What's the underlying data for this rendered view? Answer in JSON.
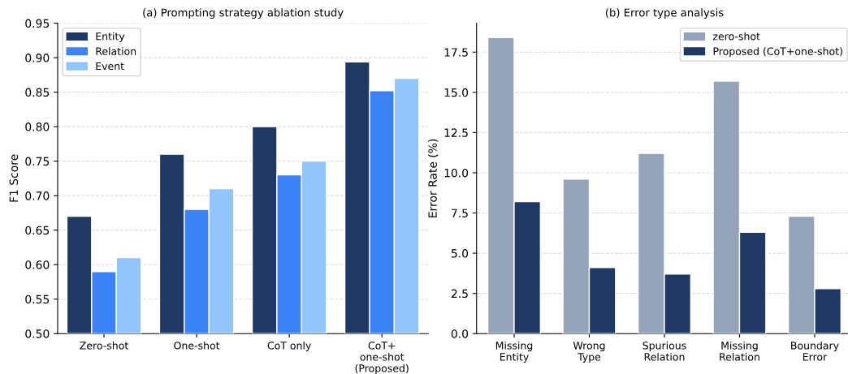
{
  "chart_data": [
    {
      "type": "bar",
      "title": "(a) Prompting strategy ablation study",
      "ylabel": "F1 Score",
      "categories": [
        "Zero-shot",
        "One-shot",
        "CoT only",
        "CoT+\none-shot\n(Proposed)"
      ],
      "series": [
        {
          "name": "Entity",
          "color": "#1f3864",
          "values": [
            0.67,
            0.76,
            0.8,
            0.894
          ]
        },
        {
          "name": "Relation",
          "color": "#3b82f6",
          "values": [
            0.59,
            0.68,
            0.73,
            0.852
          ]
        },
        {
          "name": "Event",
          "color": "#93c5fd",
          "values": [
            0.61,
            0.71,
            0.75,
            0.87
          ]
        }
      ],
      "ylim": [
        0.5,
        0.95
      ],
      "yticks": [
        {
          "value": 0.5,
          "label": "0.50"
        },
        {
          "value": 0.55,
          "label": "0.55"
        },
        {
          "value": 0.6,
          "label": "0.60"
        },
        {
          "value": 0.65,
          "label": "0.65"
        },
        {
          "value": 0.7,
          "label": "0.70"
        },
        {
          "value": 0.75,
          "label": "0.75"
        },
        {
          "value": 0.8,
          "label": "0.80"
        },
        {
          "value": 0.85,
          "label": "0.85"
        },
        {
          "value": 0.9,
          "label": "0.90"
        },
        {
          "value": 0.95,
          "label": "0.95"
        }
      ],
      "grid": "y",
      "legend": "top left"
    },
    {
      "type": "bar",
      "title": "(b) Error type analysis",
      "ylabel": "Error Rate (%)",
      "categories": [
        "Missing\nEntity",
        "Wrong\nType",
        "Spurious\nRelation",
        "Missing\nRelation",
        "Boundary\nError"
      ],
      "series": [
        {
          "name": "zero-shot",
          "color": "#94a3b8",
          "values": [
            18.4,
            9.6,
            11.2,
            15.7,
            7.3
          ]
        },
        {
          "name": "Proposed (CoT+one-shot)",
          "color": "#1f3864",
          "values": [
            8.2,
            4.1,
            3.7,
            6.3,
            2.8
          ]
        }
      ],
      "ylim": [
        0,
        19.3
      ],
      "yticks": [
        {
          "value": 0,
          "label": "0.0"
        },
        {
          "value": 2.5,
          "label": "2.5"
        },
        {
          "value": 5,
          "label": "5.0"
        },
        {
          "value": 7.5,
          "label": "7.5"
        },
        {
          "value": 10,
          "label": "10.0"
        },
        {
          "value": 12.5,
          "label": "12.5"
        },
        {
          "value": 15,
          "label": "15.0"
        },
        {
          "value": 17.5,
          "label": "17.5"
        }
      ],
      "grid": "y",
      "legend": "top right"
    }
  ]
}
